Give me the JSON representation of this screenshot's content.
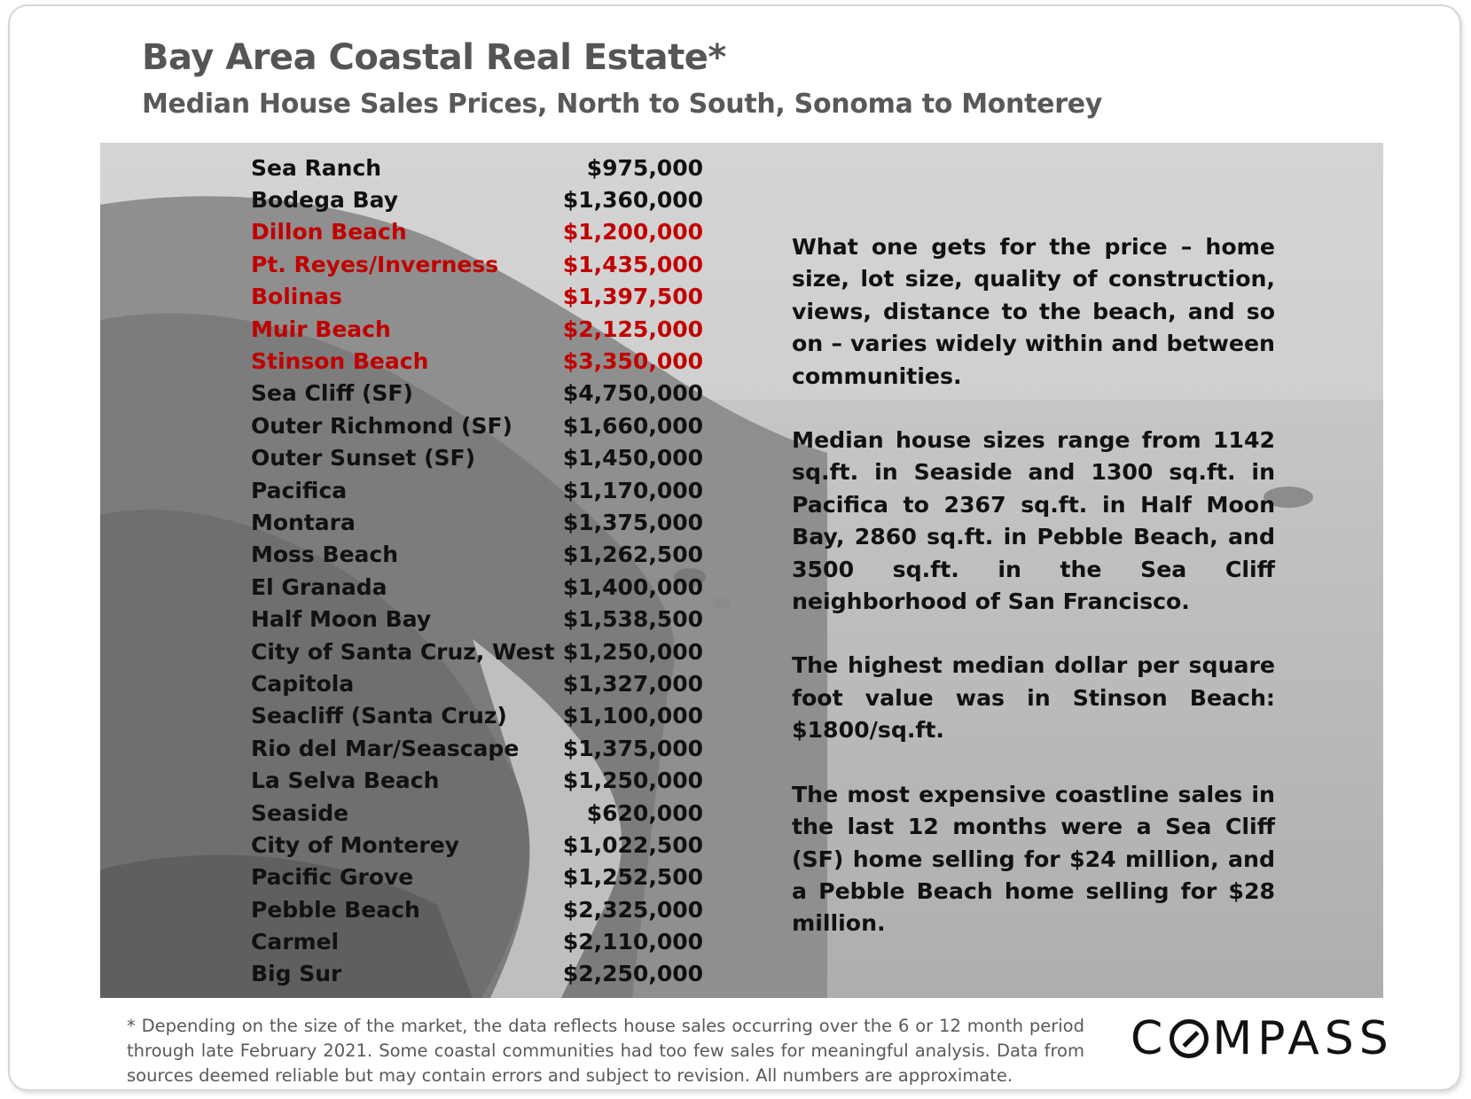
{
  "title": "Bay Area Coastal Real Estate*",
  "subtitle": "Median House Sales Prices, North to South, Sonoma to Monterey",
  "rows": [
    {
      "name": "Sea Ranch",
      "price": "$975,000",
      "highlight": false
    },
    {
      "name": "Bodega Bay",
      "price": "$1,360,000",
      "highlight": false
    },
    {
      "name": "Dillon Beach",
      "price": "$1,200,000",
      "highlight": true
    },
    {
      "name": "Pt. Reyes/Inverness",
      "price": "$1,435,000",
      "highlight": true
    },
    {
      "name": "Bolinas",
      "price": "$1,397,500",
      "highlight": true
    },
    {
      "name": "Muir Beach",
      "price": "$2,125,000",
      "highlight": true
    },
    {
      "name": "Stinson Beach",
      "price": "$3,350,000",
      "highlight": true
    },
    {
      "name": "Sea Cliff (SF)",
      "price": "$4,750,000",
      "highlight": false
    },
    {
      "name": "Outer Richmond (SF)",
      "price": "$1,660,000",
      "highlight": false
    },
    {
      "name": "Outer Sunset (SF)",
      "price": "$1,450,000",
      "highlight": false
    },
    {
      "name": "Pacifica",
      "price": "$1,170,000",
      "highlight": false
    },
    {
      "name": "Montara",
      "price": "$1,375,000",
      "highlight": false
    },
    {
      "name": "Moss Beach",
      "price": "$1,262,500",
      "highlight": false
    },
    {
      "name": "El Granada",
      "price": "$1,400,000",
      "highlight": false
    },
    {
      "name": "Half Moon Bay",
      "price": "$1,538,500",
      "highlight": false
    },
    {
      "name": "City of Santa Cruz, West",
      "price": "$1,250,000",
      "highlight": false
    },
    {
      "name": "Capitola",
      "price": "$1,327,000",
      "highlight": false
    },
    {
      "name": "Seacliff (Santa Cruz)",
      "price": "$1,100,000",
      "highlight": false
    },
    {
      "name": "Rio del Mar/Seascape",
      "price": "$1,375,000",
      "highlight": false
    },
    {
      "name": "La Selva Beach",
      "price": "$1,250,000",
      "highlight": false
    },
    {
      "name": "Seaside",
      "price": "$620,000",
      "highlight": false
    },
    {
      "name": "City of Monterey",
      "price": "$1,022,500",
      "highlight": false
    },
    {
      "name": "Pacific Grove",
      "price": "$1,252,500",
      "highlight": false
    },
    {
      "name": "Pebble Beach",
      "price": "$2,325,000",
      "highlight": false
    },
    {
      "name": "Carmel",
      "price": "$2,110,000",
      "highlight": false
    },
    {
      "name": "Big Sur",
      "price": "$2,250,000",
      "highlight": false
    }
  ],
  "notes": [
    "What one gets for the price – home size, lot size, quality of construction, views, distance to the beach, and so on – varies widely within and between communities.",
    "Median house sizes range from 1142 sq.ft. in Seaside and 1300 sq.ft. in Pacifica to 2367 sq.ft. in Half Moon Bay, 2860 sq.ft. in Pebble Beach, and 3500 sq.ft. in the Sea Cliff neighborhood of San Francisco.",
    "The highest median dollar per square foot value was in Stinson Beach: $1800/sq.ft.",
    "The most expensive coastline sales in the last 12 months were a Sea Cliff (SF) home selling for $24 million, and a Pebble Beach home selling for $28 million."
  ],
  "footnote": "* Depending on the size of the market, the data reflects house sales occurring over the 6 or 12 month period through late February 2021. Some coastal communities had too few sales for meaningful analysis. Data from sources deemed reliable but may contain errors and subject to revision. All numbers are approximate.",
  "logo": {
    "before": "C",
    "after": "MPASS",
    "full": "COMPASS"
  },
  "colors": {
    "highlight": "#c00000",
    "text": "#111111",
    "heading": "#555555",
    "photo": "#b9b9b9"
  }
}
